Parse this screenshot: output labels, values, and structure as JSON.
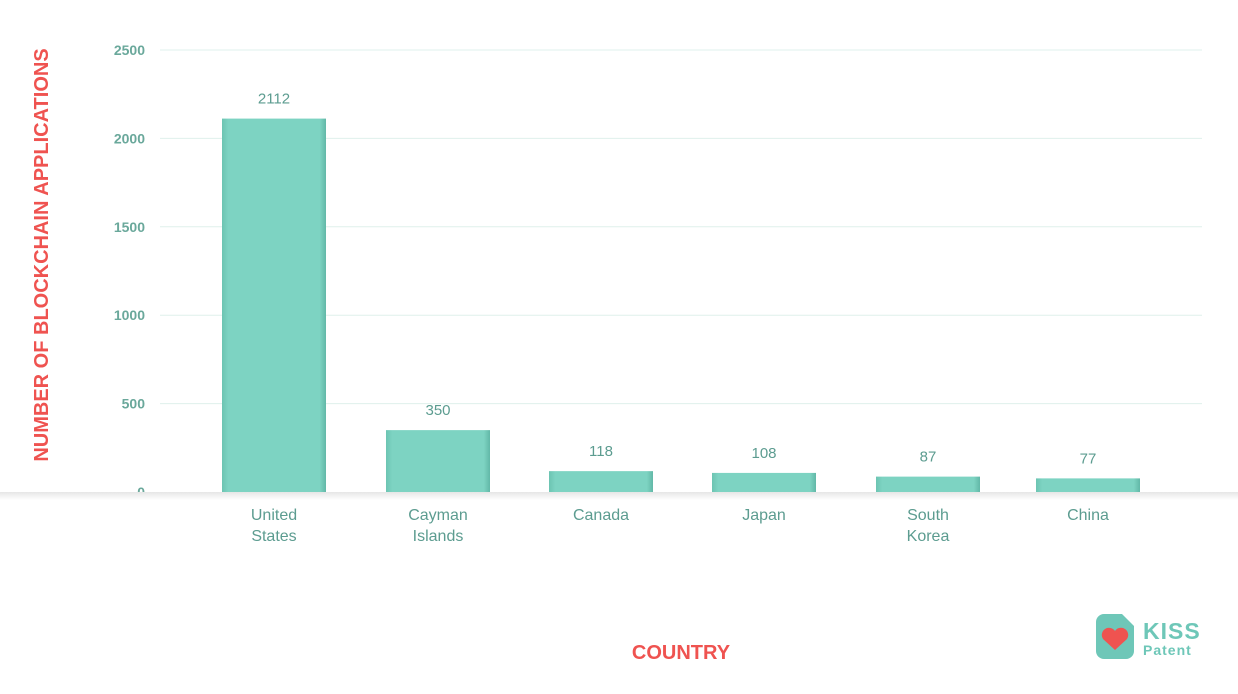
{
  "chart_data": {
    "type": "bar",
    "categories": [
      [
        "United",
        "States"
      ],
      [
        "Cayman",
        "Islands"
      ],
      [
        "Canada"
      ],
      [
        "Japan"
      ],
      [
        "South",
        "Korea"
      ],
      [
        "China"
      ]
    ],
    "values": [
      2112,
      350,
      118,
      108,
      87,
      77
    ],
    "data_labels": [
      "2112",
      "350",
      "118",
      "108",
      "87",
      "77"
    ],
    "xlabel": "COUNTRY",
    "ylabel": "NUMBER OF BLOCKCHAIN APPLICATIONS",
    "ylim": [
      0,
      2500
    ],
    "yticks": [
      "0",
      "500",
      "1000",
      "1500",
      "2000",
      "2500"
    ],
    "grid": true
  },
  "colors": {
    "bar": "#7dd3c2",
    "grid": "#dff0ec",
    "axis_title": "#ef5350",
    "tick": "#6aa89b",
    "logo_green": "#6ec7b8",
    "logo_heart": "#ef5350"
  },
  "logo": {
    "line1": "KISS",
    "line2": "Patent",
    "icon": "heart-icon"
  }
}
